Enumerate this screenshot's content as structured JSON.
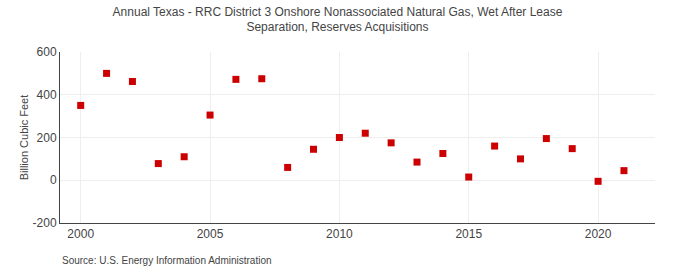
{
  "chart_data": {
    "type": "scatter",
    "title": "Annual Texas - RRC District 3 Onshore Nonassociated Natural Gas, Wet After Lease\nSeparation, Reserves Acquisitions",
    "y_label": "Billion Cubic Feet",
    "annotations": [
      "Source: U.S. Energy Information Administration"
    ],
    "x": [
      2000,
      2001,
      2002,
      2003,
      2004,
      2005,
      2006,
      2007,
      2008,
      2009,
      2010,
      2011,
      2012,
      2013,
      2014,
      2015,
      2016,
      2017,
      2018,
      2019,
      2020,
      2021
    ],
    "values": [
      350,
      500,
      462,
      78,
      110,
      305,
      472,
      475,
      60,
      145,
      200,
      220,
      175,
      85,
      125,
      15,
      160,
      100,
      195,
      148,
      -5,
      45
    ],
    "color": "#cc0000",
    "marker": "square",
    "xlim": [
      1999.2,
      2022.2
    ],
    "xticks": [
      2000,
      2005,
      2010,
      2015,
      2020
    ],
    "ylim": [
      -200,
      600
    ],
    "yticks": [
      -200,
      0,
      200,
      400,
      600
    ],
    "grid": true
  }
}
